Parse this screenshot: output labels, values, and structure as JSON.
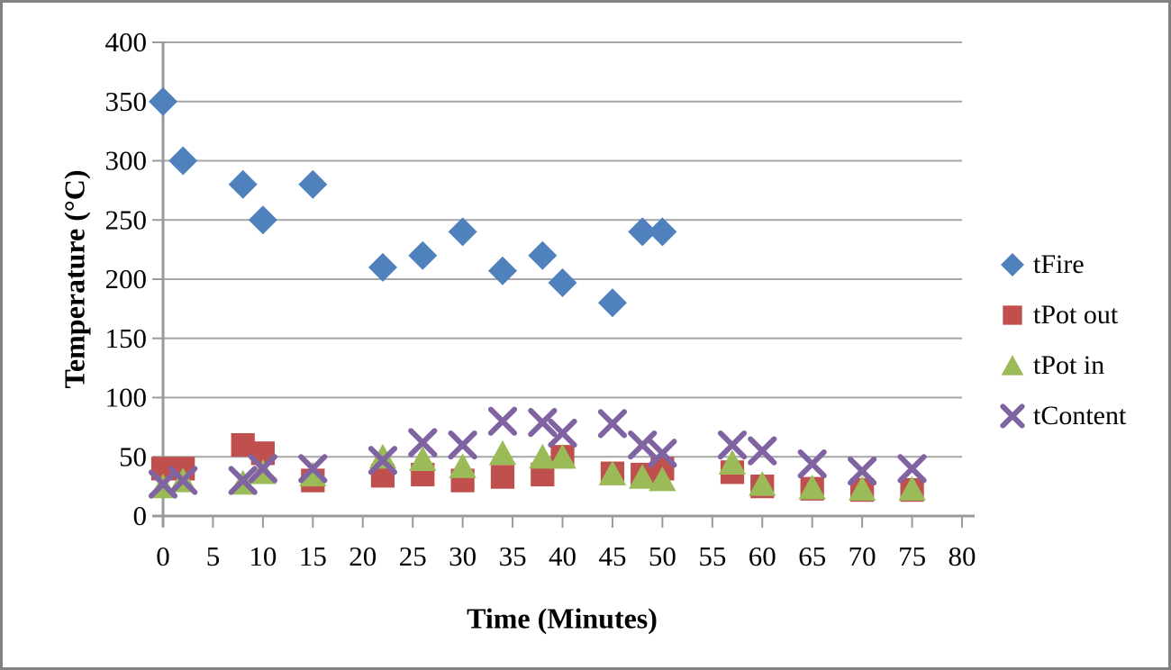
{
  "chart_data": {
    "type": "scatter",
    "xlabel": "Time (Minutes)",
    "ylabel": "Temperature (°C)",
    "xlim": [
      0,
      80
    ],
    "ylim": [
      0,
      400
    ],
    "xticks": [
      0,
      5,
      10,
      15,
      20,
      25,
      30,
      35,
      40,
      45,
      50,
      55,
      60,
      65,
      70,
      75,
      80
    ],
    "yticks": [
      0,
      50,
      100,
      150,
      200,
      250,
      300,
      350,
      400
    ],
    "grid": "horizontal-only",
    "legend_position": "right-middle",
    "colors": {
      "grid": "#a6a6a6",
      "axis": "#9a9a9a",
      "frame_border": "#818181",
      "background": "#ffffff",
      "text": "#000000"
    },
    "series": [
      {
        "name": "tFire",
        "marker": "diamond",
        "color": "#4f81bd",
        "points": [
          [
            0,
            350
          ],
          [
            2,
            300
          ],
          [
            8,
            280
          ],
          [
            10,
            250
          ],
          [
            15,
            280
          ],
          [
            22,
            210
          ],
          [
            26,
            220
          ],
          [
            30,
            240
          ],
          [
            34,
            207
          ],
          [
            38,
            220
          ],
          [
            40,
            197
          ],
          [
            45,
            180
          ],
          [
            48,
            240
          ],
          [
            50,
            240
          ]
        ]
      },
      {
        "name": "tPot out",
        "marker": "square",
        "color": "#c0504d",
        "points": [
          [
            0,
            40
          ],
          [
            2,
            40
          ],
          [
            8,
            60
          ],
          [
            10,
            53
          ],
          [
            15,
            30
          ],
          [
            22,
            34
          ],
          [
            26,
            35
          ],
          [
            30,
            30
          ],
          [
            34,
            33
          ],
          [
            38,
            35
          ],
          [
            40,
            50
          ],
          [
            45,
            36
          ],
          [
            48,
            35
          ],
          [
            50,
            40
          ],
          [
            57,
            37
          ],
          [
            60,
            25
          ],
          [
            65,
            23
          ],
          [
            70,
            22
          ],
          [
            75,
            22
          ]
        ]
      },
      {
        "name": "tPot in",
        "marker": "triangle",
        "color": "#9bbb59",
        "points": [
          [
            0,
            25
          ],
          [
            2,
            30
          ],
          [
            8,
            28
          ],
          [
            10,
            37
          ],
          [
            15,
            35
          ],
          [
            22,
            50
          ],
          [
            26,
            48
          ],
          [
            30,
            42
          ],
          [
            34,
            53
          ],
          [
            38,
            50
          ],
          [
            40,
            50
          ],
          [
            45,
            36
          ],
          [
            48,
            33
          ],
          [
            50,
            31
          ],
          [
            57,
            45
          ],
          [
            60,
            27
          ],
          [
            65,
            24
          ],
          [
            70,
            23
          ],
          [
            75,
            23
          ]
        ]
      },
      {
        "name": "tContent",
        "marker": "x",
        "color": "#8064a2",
        "points": [
          [
            0,
            27
          ],
          [
            2,
            30
          ],
          [
            8,
            30
          ],
          [
            10,
            40
          ],
          [
            15,
            40
          ],
          [
            22,
            47
          ],
          [
            26,
            62
          ],
          [
            30,
            60
          ],
          [
            34,
            80
          ],
          [
            38,
            79
          ],
          [
            40,
            70
          ],
          [
            45,
            78
          ],
          [
            48,
            60
          ],
          [
            50,
            53
          ],
          [
            57,
            60
          ],
          [
            60,
            55
          ],
          [
            65,
            44
          ],
          [
            70,
            38
          ],
          [
            75,
            40
          ]
        ]
      }
    ]
  }
}
